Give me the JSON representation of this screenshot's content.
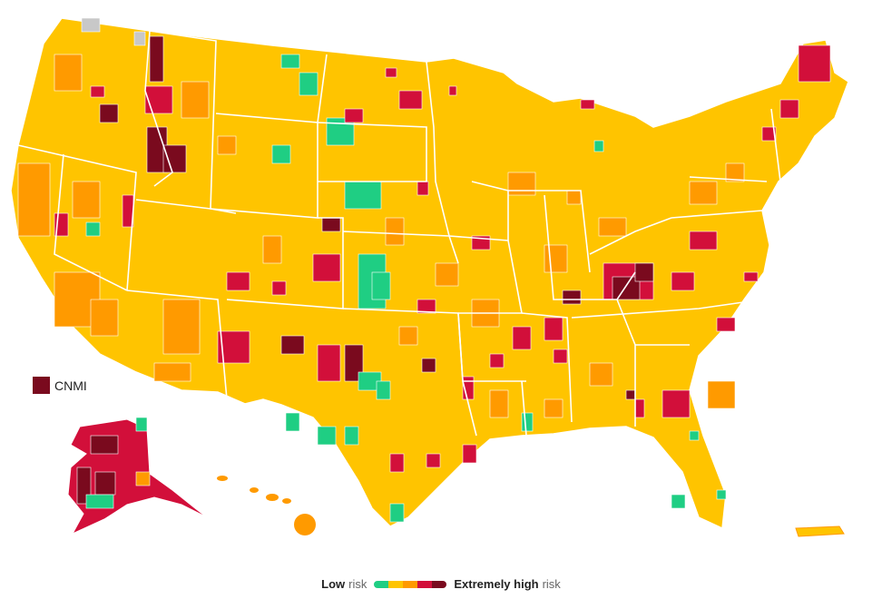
{
  "legend": {
    "low_word": "Low",
    "low_suffix": "risk",
    "high_word": "Extremely high",
    "high_suffix": "risk",
    "colors": [
      "#1fce83",
      "#ffc400",
      "#ff9a00",
      "#d20f3a",
      "#7a0a1e"
    ]
  },
  "cnmi": {
    "label": "CNMI",
    "color": "#7a0a1e"
  },
  "palette": {
    "yellow": "#ffc400",
    "orange": "#ff9a00",
    "red": "#d20f3a",
    "dark_red": "#7a0a1e",
    "green": "#1fce83",
    "gray": "#c8c8c8",
    "border": "#ffffff"
  },
  "map": {
    "regions": [
      "Contiguous U.S.",
      "Alaska",
      "Hawaii",
      "Puerto Rico"
    ]
  }
}
